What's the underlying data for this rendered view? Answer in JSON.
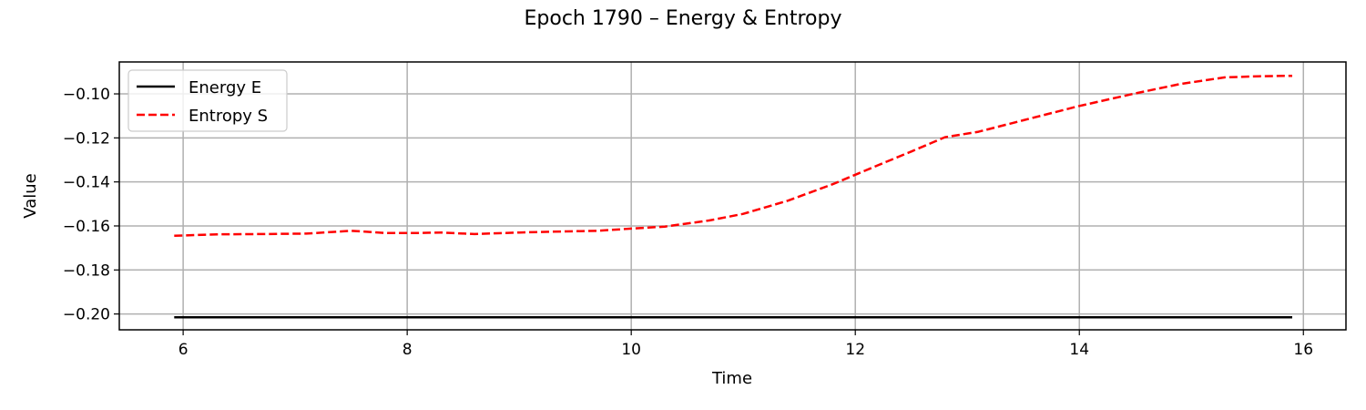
{
  "chart_data": {
    "type": "line",
    "title": "Epoch 1790 – Energy & Entropy",
    "xlabel": "Time",
    "ylabel": "Value",
    "xlim": [
      5.43,
      16.38
    ],
    "ylim": [
      -0.2072,
      -0.0855
    ],
    "xticks": [
      6,
      8,
      10,
      12,
      14,
      16
    ],
    "xtick_labels": [
      "6",
      "8",
      "10",
      "12",
      "14",
      "16"
    ],
    "yticks": [
      -0.1,
      -0.12,
      -0.14,
      -0.16,
      -0.18,
      -0.2
    ],
    "ytick_labels": [
      "−0.10",
      "−0.12",
      "−0.14",
      "−0.16",
      "−0.18",
      "−0.20"
    ],
    "grid": true,
    "legend_position": "top-left",
    "series": [
      {
        "name": "Energy E",
        "color": "#000000",
        "style": "solid",
        "x": [
          5.92,
          15.9
        ],
        "y": [
          -0.2015,
          -0.2015
        ]
      },
      {
        "name": "Entropy S",
        "color": "#ff0000",
        "style": "dashed",
        "x": [
          5.92,
          6.3,
          6.7,
          7.1,
          7.5,
          7.8,
          8.1,
          8.3,
          8.6,
          9.0,
          9.4,
          9.7,
          10.0,
          10.3,
          10.7,
          11.0,
          11.4,
          11.8,
          12.2,
          12.5,
          12.8,
          13.1,
          13.5,
          14.0,
          14.5,
          14.9,
          15.3,
          15.6,
          15.9
        ],
        "y": [
          -0.1645,
          -0.1638,
          -0.1637,
          -0.1635,
          -0.1622,
          -0.1632,
          -0.1632,
          -0.163,
          -0.1637,
          -0.163,
          -0.1625,
          -0.1622,
          -0.1612,
          -0.1603,
          -0.1575,
          -0.1545,
          -0.1485,
          -0.141,
          -0.1325,
          -0.1262,
          -0.1197,
          -0.1172,
          -0.112,
          -0.1055,
          -0.0998,
          -0.0955,
          -0.0925,
          -0.092,
          -0.0918
        ]
      }
    ]
  }
}
